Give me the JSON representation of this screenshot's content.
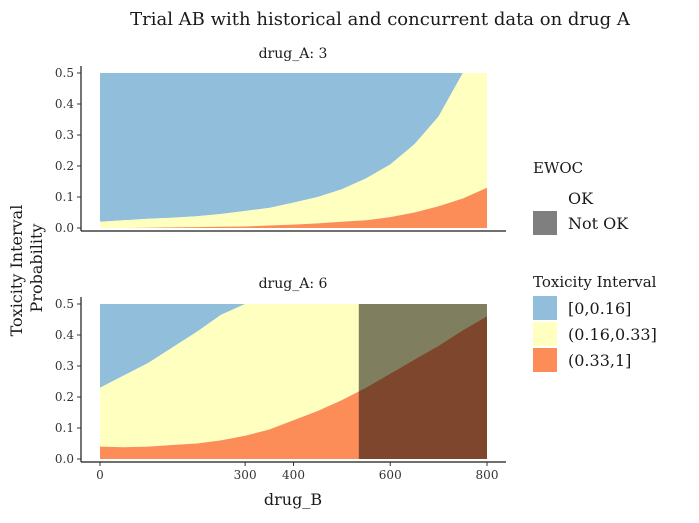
{
  "chart_data": {
    "type": "area",
    "title": "Trial AB with historical and concurrent data on drug A",
    "xlabel": "drug_B",
    "ylabel": [
      "Toxicity Interval",
      "Probability"
    ],
    "xlim": [
      0,
      800
    ],
    "ylim": [
      0,
      0.5
    ],
    "x_ticks": [
      0,
      300,
      400,
      600,
      800
    ],
    "y_ticks": [
      0.0,
      0.1,
      0.2,
      0.3,
      0.4,
      0.5
    ],
    "y_tick_labels": [
      "0.0",
      "0.1",
      "0.2",
      "0.3",
      "0.4",
      "0.5"
    ],
    "panels": [
      {
        "strip_label": "drug_A: 3",
        "x": [
          0,
          50,
          100,
          150,
          200,
          250,
          300,
          350,
          400,
          450,
          500,
          550,
          600,
          650,
          700,
          750,
          800
        ],
        "p_lower_bound": [
          0.02,
          0.025,
          0.03,
          0.033,
          0.038,
          0.045,
          0.055,
          0.065,
          0.082,
          0.1,
          0.125,
          0.16,
          0.205,
          0.27,
          0.36,
          0.5,
          0.5
        ],
        "p_upper_bound": [
          0.0,
          0.0,
          0.001,
          0.002,
          0.003,
          0.004,
          0.005,
          0.008,
          0.011,
          0.015,
          0.02,
          0.025,
          0.035,
          0.05,
          0.07,
          0.095,
          0.13
        ],
        "not_ok_from_x": null
      },
      {
        "strip_label": "drug_A: 6",
        "x": [
          0,
          50,
          100,
          150,
          200,
          250,
          300,
          350,
          400,
          450,
          500,
          550,
          600,
          650,
          700,
          750,
          800
        ],
        "p_lower_bound": [
          0.23,
          0.27,
          0.31,
          0.36,
          0.41,
          0.465,
          0.5,
          0.5,
          0.5,
          0.5,
          0.5,
          0.5,
          0.5,
          0.5,
          0.5,
          0.5,
          0.5
        ],
        "p_upper_bound": [
          0.04,
          0.038,
          0.04,
          0.045,
          0.05,
          0.06,
          0.075,
          0.095,
          0.125,
          0.155,
          0.19,
          0.23,
          0.275,
          0.32,
          0.365,
          0.415,
          0.46
        ],
        "not_ok_from_x": 535
      }
    ],
    "legend": {
      "ewoc": {
        "title": "EWOC",
        "items": [
          "OK",
          "Not OK"
        ]
      },
      "interval": {
        "title": "Toxicity Interval",
        "items": [
          "[0,0.16]",
          "(0.16,0.33]",
          "(0.33,1]"
        ]
      }
    },
    "colors": {
      "low": "#91bfdb",
      "mid": "#ffffbf",
      "high": "#fc8d59",
      "not_ok_overlay": "#000000",
      "not_ok_opacity": 0.5,
      "not_ok_key": "#7f7f7f"
    },
    "grid": false,
    "legend_position": "right"
  }
}
